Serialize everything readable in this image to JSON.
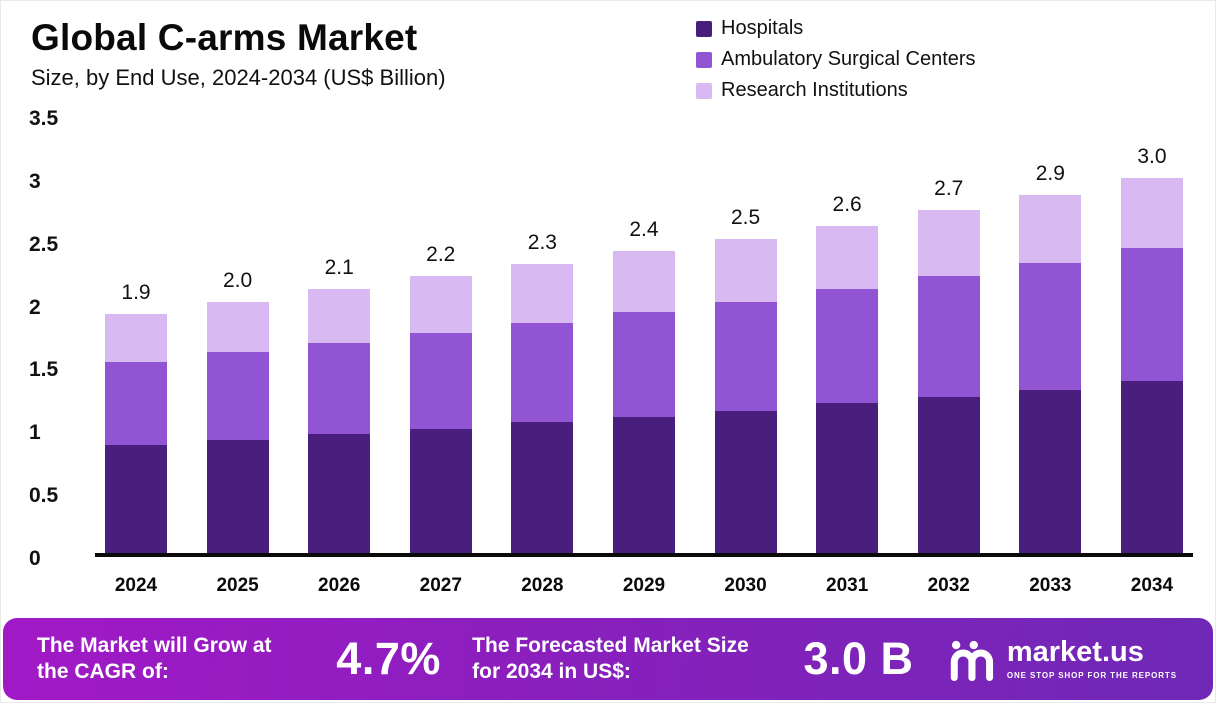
{
  "header": {
    "title": "Global C-arms Market",
    "subtitle": "Size, by End Use, 2024-2034 (US$ Billion)"
  },
  "legend": [
    {
      "label": "Hospitals",
      "color": "#4a1e7d"
    },
    {
      "label": "Ambulatory Surgical Centers",
      "color": "#9155d4"
    },
    {
      "label": "Research Institutions",
      "color": "#d9b9f1"
    }
  ],
  "chart_data": {
    "type": "bar",
    "stacked": true,
    "title": "Global C-arms Market",
    "subtitle": "Size, by End Use, 2024-2034 (US$ Billion)",
    "xlabel": "",
    "ylabel": "US$ Billion",
    "ylim": [
      0,
      3.5
    ],
    "yticks": [
      "3.5",
      "3",
      "2.5",
      "2",
      "1.5",
      "1",
      "0.5",
      "0"
    ],
    "grid": false,
    "legend_position": "top-right",
    "categories": [
      "2024",
      "2025",
      "2026",
      "2027",
      "2028",
      "2029",
      "2030",
      "2031",
      "2032",
      "2033",
      "2034"
    ],
    "series": [
      {
        "name": "Hospitals",
        "color": "#4a1e7d",
        "values": [
          0.86,
          0.9,
          0.95,
          0.99,
          1.04,
          1.08,
          1.13,
          1.19,
          1.24,
          1.3,
          1.37
        ]
      },
      {
        "name": "Ambulatory Surgical Centers",
        "color": "#9155d4",
        "values": [
          0.66,
          0.7,
          0.72,
          0.76,
          0.79,
          0.84,
          0.87,
          0.91,
          0.96,
          1.01,
          1.06
        ]
      },
      {
        "name": "Research Institutions",
        "color": "#d9b9f1",
        "values": [
          0.38,
          0.4,
          0.43,
          0.45,
          0.47,
          0.48,
          0.5,
          0.5,
          0.53,
          0.54,
          0.55
        ]
      }
    ],
    "totals": [
      "1.9",
      "2.0",
      "2.1",
      "2.2",
      "2.3",
      "2.4",
      "2.5",
      "2.6",
      "2.7",
      "2.9",
      "3.0"
    ]
  },
  "footer": {
    "cagr_label": "The Market will Grow at the CAGR of:",
    "cagr_value": "4.7%",
    "forecast_label": "The Forecasted Market Size for 2034 in US$:",
    "forecast_value": "3.0 B",
    "brand": "market.us",
    "brand_tagline": "ONE STOP SHOP FOR THE REPORTS"
  }
}
